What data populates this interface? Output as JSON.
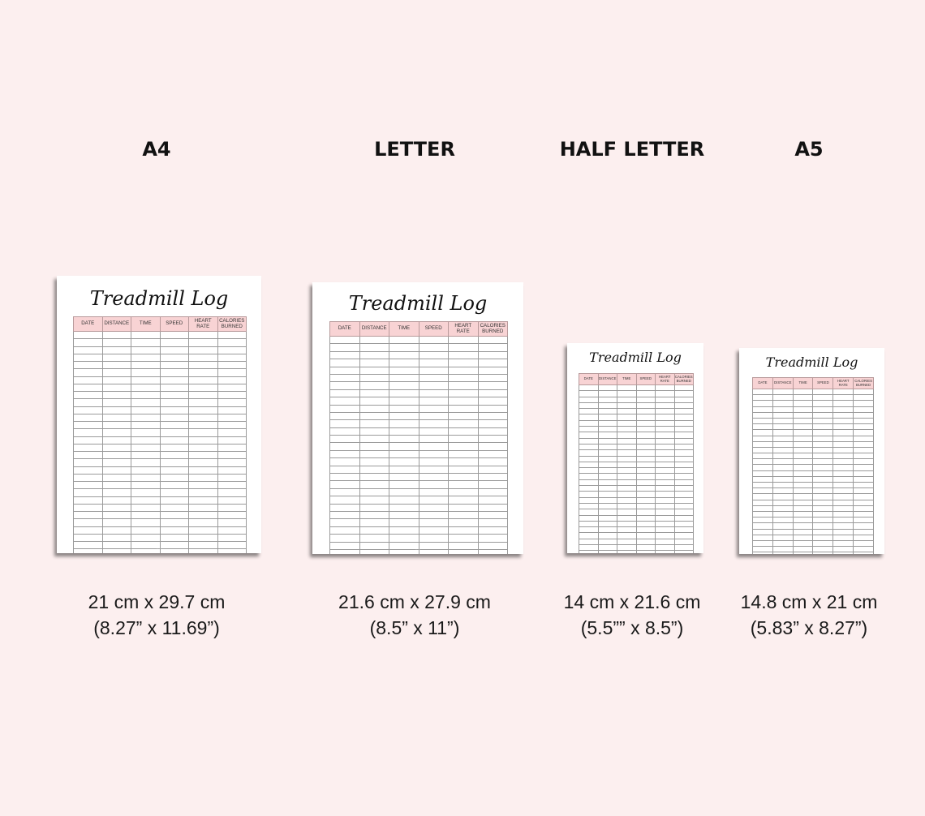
{
  "columns": [
    "DATE",
    "DISTANCE",
    "TIME",
    "SPEED",
    "HEART RATE",
    "CALORIES BURNED"
  ],
  "formats": [
    {
      "id": "a4",
      "label": "A4",
      "title": "Treadmill Log",
      "metric": "21 cm x 29.7 cm",
      "imperial": "(8.27” x 11.69”)",
      "rows": 31
    },
    {
      "id": "letter",
      "label": "LETTER",
      "title": "Treadmill Log",
      "metric": "21.6 cm x 27.9 cm",
      "imperial": "(8.5” x 11”)",
      "rows": 31
    },
    {
      "id": "half-letter",
      "label": "HALF LETTER",
      "title": "Treadmill Log",
      "metric": "14 cm x 21.6 cm",
      "imperial": "(5.5”” x 8.5”)",
      "rows": 31
    },
    {
      "id": "a5",
      "label": "A5",
      "title": "Treadmill Log",
      "metric": "14.8 cm x 21 cm",
      "imperial": "(5.83” x 8.27”)",
      "rows": 31
    }
  ],
  "colors": {
    "background": "#fcefef",
    "header_fill": "#f8d3d4",
    "sheet": "#ffffff"
  }
}
